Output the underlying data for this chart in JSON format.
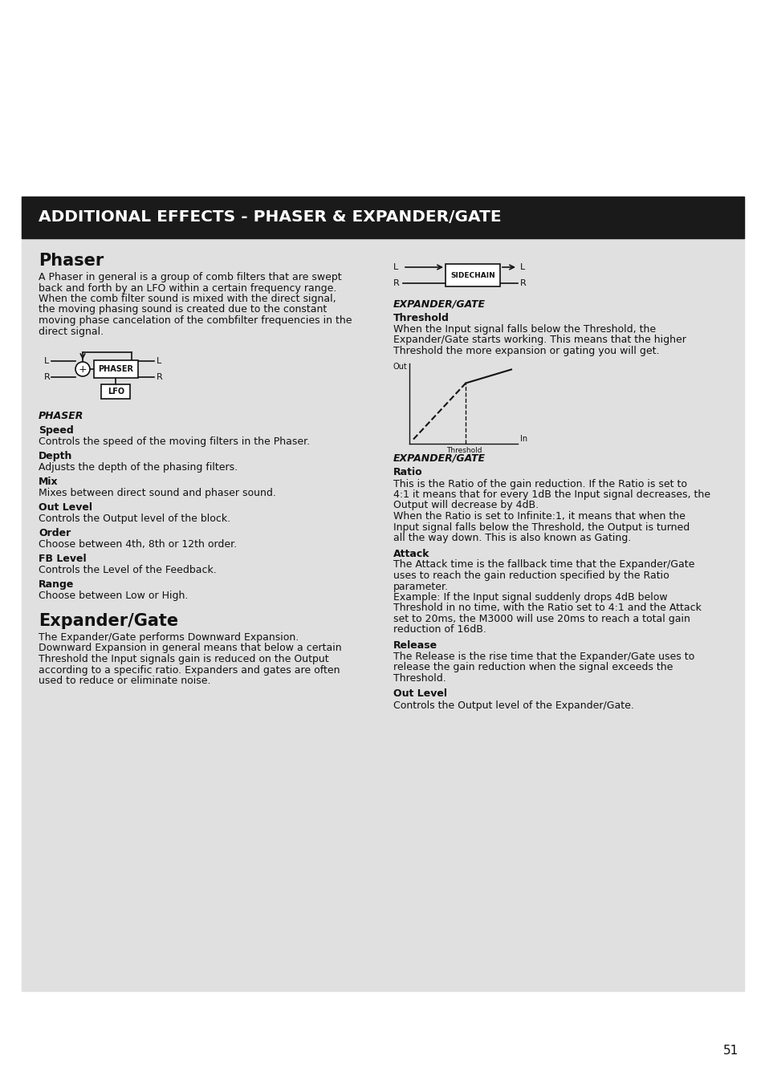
{
  "title": "ADDITIONAL EFFECTS - PHASER & EXPANDER/GATE",
  "title_bg": "#1a1a1a",
  "title_color": "#ffffff",
  "page_bg": "#e0e0e0",
  "page_number": "51",
  "phaser_heading": "Phaser",
  "phaser_intro": [
    "A Phaser in general is a group of comb filters that are swept",
    "back and forth by an LFO within a certain frequency range.",
    "When the comb filter sound is mixed with the direct signal,",
    "the moving phasing sound is created due to the constant",
    "moving phase cancelation of the combfilter frequencies in the",
    "direct signal."
  ],
  "phaser_label": "PHASER",
  "phaser_params": [
    [
      "Speed",
      "Controls the speed of the moving filters in the Phaser."
    ],
    [
      "Depth",
      "Adjusts the depth of the phasing filters."
    ],
    [
      "Mix",
      "Mixes between direct sound and phaser sound."
    ],
    [
      "Out Level",
      "Controls the Output level of the block."
    ],
    [
      "Order",
      "Choose between 4th, 8th or 12th order."
    ],
    [
      "FB Level",
      "Controls the Level of the Feedback."
    ],
    [
      "Range",
      "Choose between Low or High."
    ]
  ],
  "expander_heading": "Expander/Gate",
  "expander_intro": [
    "The Expander/Gate performs Downward Expansion.",
    "Downward Expansion in general means that below a certain",
    "Threshold the Input signals gain is reduced on the Output",
    "according to a specific ratio. Expanders and gates are often",
    "used to reduce or eliminate noise."
  ],
  "expander_label": "EXPANDER/GATE",
  "expander_label2": "EXPANDER/GATE",
  "threshold_heading": "Threshold",
  "threshold_text": [
    "When the Input signal falls below the Threshold, the",
    "Expander/Gate starts working. This means that the higher",
    "Threshold the more expansion or gating you will get."
  ],
  "expander_params": [
    [
      "Ratio",
      [
        "This is the Ratio of the gain reduction. If the Ratio is set to",
        "4:1 it means that for every 1dB the Input signal decreases, the",
        "Output will decrease by 4dB.",
        "When the Ratio is set to Infinite:1, it means that when the",
        "Input signal falls below the Threshold, the Output is turned",
        "all the way down. This is also known as Gating."
      ]
    ],
    [
      "Attack",
      [
        "The Attack time is the fallback time that the Expander/Gate",
        "uses to reach the gain reduction specified by the Ratio",
        "parameter.",
        "Example: If the Input signal suddenly drops 4dB below",
        "Threshold in no time, with the Ratio set to 4:1 and the Attack",
        "set to 20ms, the M3000 will use 20ms to reach a total gain",
        "reduction of 16dB."
      ]
    ],
    [
      "Release",
      [
        "The Release is the rise time that the Expander/Gate uses to",
        "release the gain reduction when the signal exceeds the",
        "Threshold."
      ]
    ],
    [
      "Out Level",
      [
        "Controls the Output level of the Expander/Gate."
      ]
    ]
  ]
}
